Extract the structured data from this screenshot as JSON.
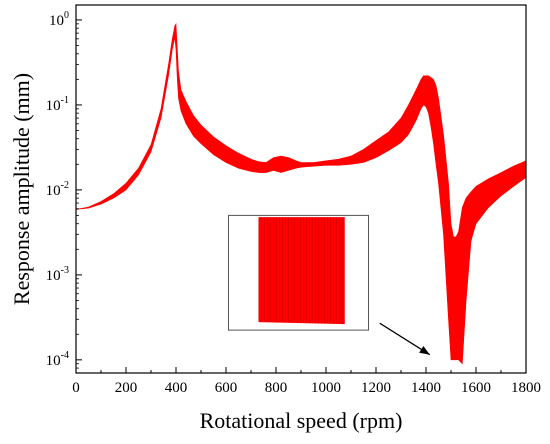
{
  "chart_data": {
    "type": "line",
    "title": "",
    "xlabel": "Rotational speed (rpm)",
    "ylabel": "Response amplitude (mm)",
    "xlim": [
      0,
      1800
    ],
    "ylim": [
      7e-05,
      1.5
    ],
    "yscale": "log",
    "grid": false,
    "legend": "none",
    "series_color": "#ff0000",
    "x_ticks": [
      0,
      200,
      400,
      600,
      800,
      1000,
      1200,
      1400,
      1600,
      1800
    ],
    "x_tick_labels": [
      "0",
      "200",
      "400",
      "600",
      "800",
      "1000",
      "1200",
      "1400",
      "1600",
      "1800"
    ],
    "y_ticks": [
      0.0001,
      0.001,
      0.01,
      0.1,
      1
    ],
    "y_tick_labels": [
      {
        "base": "10",
        "exp": "-4"
      },
      {
        "base": "10",
        "exp": "-3"
      },
      {
        "base": "10",
        "exp": "-2"
      },
      {
        "base": "10",
        "exp": "-1"
      },
      {
        "base": "10",
        "exp": "0"
      }
    ],
    "series": [
      {
        "name": "",
        "band": true,
        "x": [
          0,
          50,
          100,
          150,
          200,
          250,
          300,
          340,
          370,
          385,
          395,
          400,
          405,
          410,
          420,
          440,
          470,
          500,
          550,
          600,
          650,
          700,
          730,
          760,
          790,
          820,
          850,
          880,
          900,
          950,
          1000,
          1050,
          1100,
          1150,
          1200,
          1250,
          1300,
          1330,
          1360,
          1380,
          1390,
          1400,
          1410,
          1420,
          1430,
          1440,
          1450,
          1470,
          1490,
          1500,
          1510,
          1520,
          1530,
          1545,
          1560,
          1580,
          1600,
          1650,
          1700,
          1750,
          1800
        ],
        "lower": [
          0.0059,
          0.0061,
          0.0068,
          0.008,
          0.01,
          0.015,
          0.028,
          0.07,
          0.22,
          0.45,
          0.62,
          0.45,
          0.2,
          0.12,
          0.085,
          0.06,
          0.043,
          0.035,
          0.026,
          0.021,
          0.018,
          0.0165,
          0.016,
          0.016,
          0.017,
          0.016,
          0.017,
          0.018,
          0.0185,
          0.019,
          0.0195,
          0.0195,
          0.02,
          0.021,
          0.024,
          0.029,
          0.036,
          0.045,
          0.065,
          0.09,
          0.1,
          0.095,
          0.08,
          0.055,
          0.035,
          0.02,
          0.012,
          0.003,
          0.0003,
          0.0001,
          0.0001,
          0.0001,
          0.0001,
          9e-05,
          0.00048,
          0.0025,
          0.004,
          0.0062,
          0.0085,
          0.011,
          0.014
        ],
        "upper": [
          0.0059,
          0.0063,
          0.0073,
          0.009,
          0.012,
          0.018,
          0.034,
          0.09,
          0.3,
          0.6,
          0.85,
          0.9,
          0.45,
          0.25,
          0.15,
          0.11,
          0.075,
          0.058,
          0.042,
          0.033,
          0.027,
          0.023,
          0.0215,
          0.021,
          0.024,
          0.025,
          0.024,
          0.022,
          0.021,
          0.021,
          0.022,
          0.023,
          0.025,
          0.03,
          0.038,
          0.048,
          0.07,
          0.1,
          0.15,
          0.2,
          0.22,
          0.22,
          0.22,
          0.21,
          0.2,
          0.17,
          0.12,
          0.045,
          0.012,
          0.004,
          0.0028,
          0.0028,
          0.0032,
          0.0062,
          0.008,
          0.0095,
          0.011,
          0.0135,
          0.016,
          0.019,
          0.022
        ]
      }
    ],
    "annotation": {
      "type": "arrow",
      "from": [
        1215,
        0.00027
      ],
      "to": [
        1415,
        0.000115
      ]
    },
    "inset": {
      "panel_x": [
        610,
        1170
      ],
      "panel_y_log": [
        -3.65,
        -2.3
      ],
      "band_x": [
        730,
        1075
      ],
      "band_top_log": -2.32,
      "band_bottom_log": -3.58
    }
  }
}
